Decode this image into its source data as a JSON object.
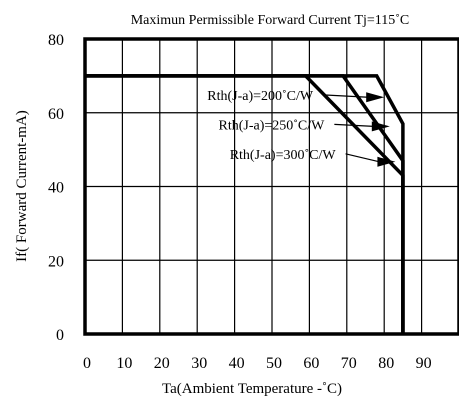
{
  "chart_data": {
    "type": "line",
    "title": "Maximun Permissible Forward Current Tj=115˚C",
    "xlabel": "Ta(Ambient Temperature -˚C)",
    "ylabel": "If( Forward Current-mA)",
    "xlim": [
      0,
      100
    ],
    "ylim": [
      0,
      80
    ],
    "x_ticks": [
      0,
      10,
      20,
      30,
      40,
      50,
      60,
      70,
      80,
      90
    ],
    "y_ticks": [
      0,
      20,
      40,
      60,
      80
    ],
    "x_tick_labels": [
      "0",
      "10",
      "20",
      "30",
      "40",
      "50",
      "60",
      "70",
      "80",
      "90"
    ],
    "y_tick_labels": [
      "0",
      "20",
      "40",
      "60",
      "80"
    ],
    "grid": true,
    "series": [
      {
        "name": "Rth(J-a)=200˚C/W",
        "points": [
          [
            0,
            70
          ],
          [
            78,
            70
          ],
          [
            85,
            57
          ],
          [
            85,
            0
          ]
        ],
        "label_pos": [
          61,
          63.5
        ],
        "arrow_to": [
          80,
          64.2
        ]
      },
      {
        "name": "Rth(J-a)=250˚C/W",
        "points": [
          [
            0,
            70
          ],
          [
            69,
            70
          ],
          [
            85,
            47
          ],
          [
            85,
            0
          ]
        ],
        "label_pos": [
          64,
          55.5
        ],
        "arrow_to": [
          81.5,
          56.3
        ]
      },
      {
        "name": "Rth(J-a)=300˚C/W",
        "points": [
          [
            0,
            70
          ],
          [
            59,
            70
          ],
          [
            85,
            43
          ],
          [
            85,
            0
          ]
        ],
        "label_pos": [
          67,
          47.5
        ],
        "arrow_to": [
          83,
          46.7
        ]
      }
    ]
  }
}
